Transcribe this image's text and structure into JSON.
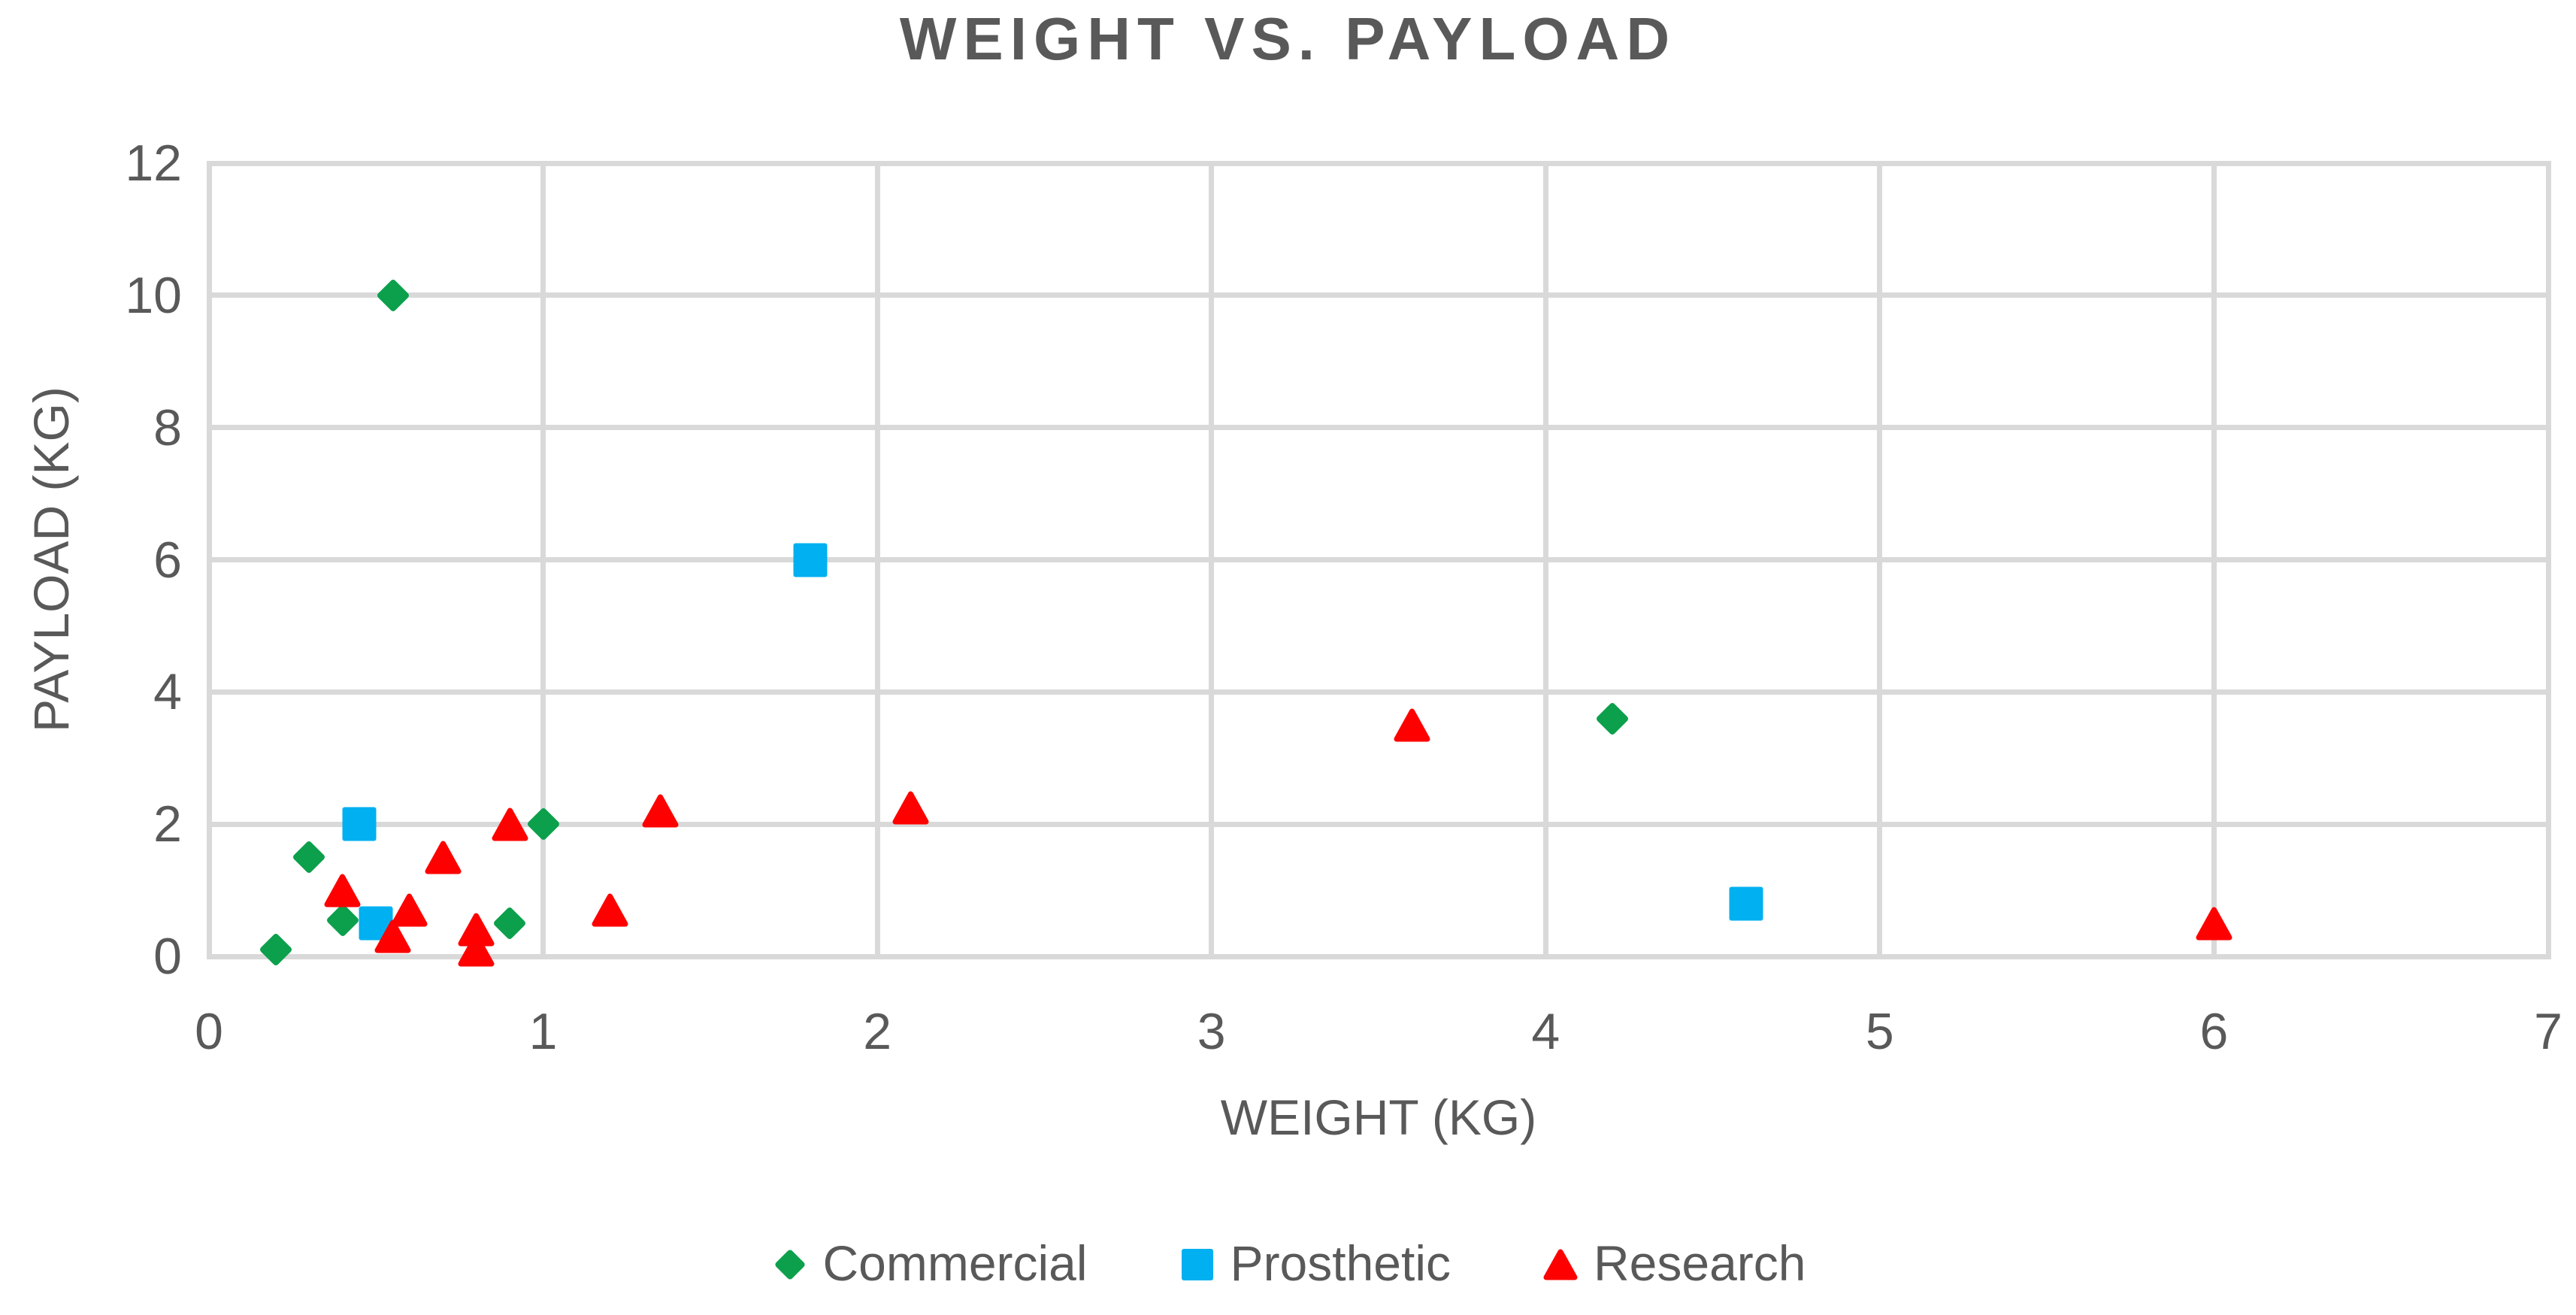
{
  "title": "WEIGHT VS. PAYLOAD",
  "colors": {
    "commercial_green": "#0CA04C",
    "prosthetic_blue": "#00B0F0",
    "research_red": "#FF0000",
    "gridline_gray": "#D9D9D9",
    "text_gray": "#595959"
  },
  "x_axis": {
    "title": "WEIGHT (KG)",
    "tick_labels": [
      "0",
      "1",
      "2",
      "3",
      "4",
      "5",
      "6",
      "7"
    ]
  },
  "y_axis": {
    "title": "PAYLOAD (KG)",
    "tick_labels": [
      "0",
      "2",
      "4",
      "6",
      "8",
      "10",
      "12"
    ]
  },
  "legend": {
    "items": [
      "Commercial",
      "Prosthetic",
      "Research"
    ]
  },
  "chart_data": {
    "type": "scatter",
    "title": "WEIGHT VS. PAYLOAD",
    "xlabel": "WEIGHT (KG)",
    "ylabel": "PAYLOAD (KG)",
    "xlim": [
      0,
      7
    ],
    "ylim": [
      0,
      12
    ],
    "x_ticks": [
      0,
      1,
      2,
      3,
      4,
      5,
      6,
      7
    ],
    "y_ticks": [
      0,
      2,
      4,
      6,
      8,
      10,
      12
    ],
    "grid": true,
    "legend_position": "bottom",
    "series": [
      {
        "name": "Commercial",
        "marker": "diamond",
        "color": "#0CA04C",
        "points": [
          [
            0.2,
            0.1
          ],
          [
            0.3,
            1.5
          ],
          [
            0.4,
            0.55
          ],
          [
            0.55,
            10
          ],
          [
            0.9,
            0.5
          ],
          [
            1.0,
            2.0
          ],
          [
            4.2,
            3.6
          ]
        ]
      },
      {
        "name": "Prosthetic",
        "marker": "square",
        "color": "#00B0F0",
        "points": [
          [
            0.45,
            2.0
          ],
          [
            0.5,
            0.5
          ],
          [
            1.8,
            6.0
          ],
          [
            4.6,
            0.8
          ]
        ]
      },
      {
        "name": "Research",
        "marker": "triangle",
        "color": "#FF0000",
        "points": [
          [
            0.4,
            1.0
          ],
          [
            0.55,
            0.3
          ],
          [
            0.6,
            0.7
          ],
          [
            0.7,
            1.5
          ],
          [
            0.8,
            0.4
          ],
          [
            0.8,
            0.1
          ],
          [
            0.9,
            2.0
          ],
          [
            1.2,
            0.7
          ],
          [
            1.35,
            2.2
          ],
          [
            2.1,
            2.25
          ],
          [
            3.6,
            3.5
          ],
          [
            6.0,
            0.5
          ]
        ]
      }
    ]
  }
}
